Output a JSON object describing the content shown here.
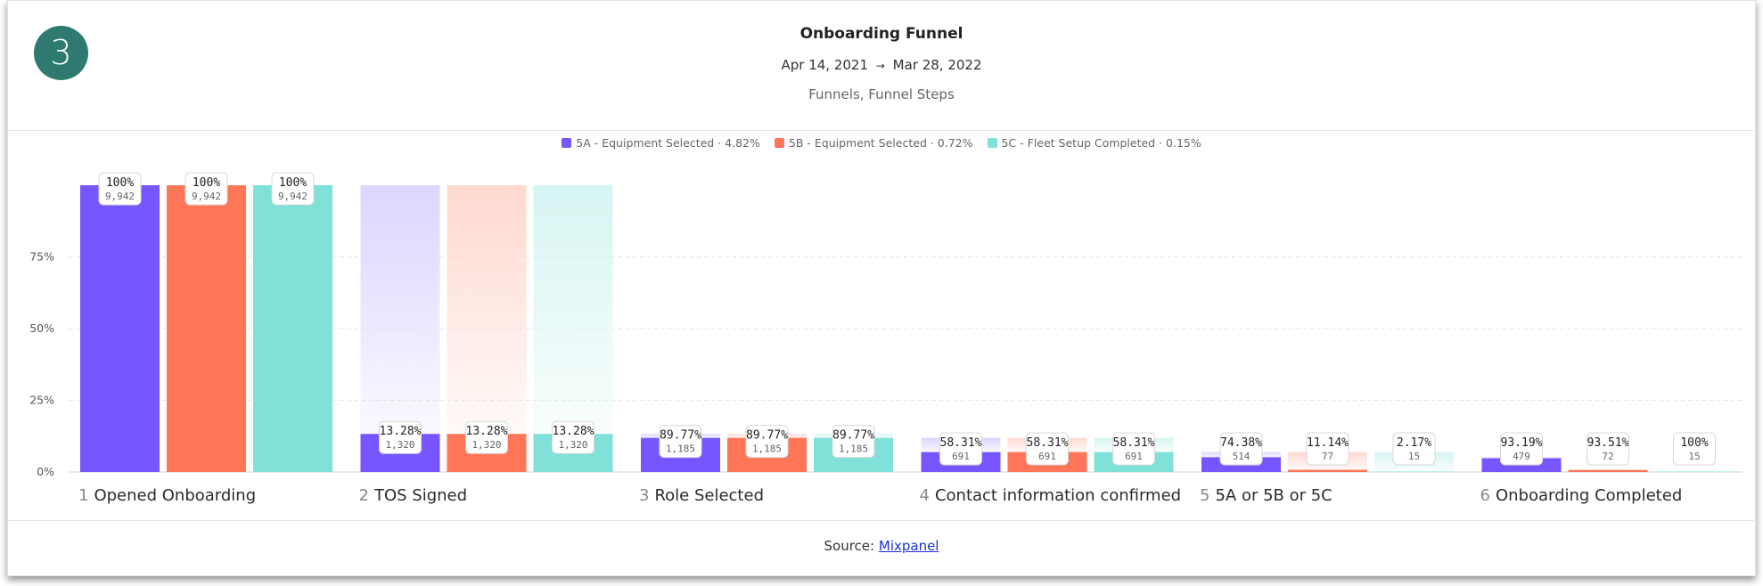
{
  "badge": "3",
  "header": {
    "title": "Onboarding Funnel",
    "date_start": "Apr 14, 2021",
    "date_arrow": "→",
    "date_end": "Mar 28, 2022",
    "subtitle": "Funnels, Funnel Steps"
  },
  "legend": [
    {
      "name": "5A - Equipment Selected",
      "rate": "4.82%",
      "color": "#7856ff"
    },
    {
      "name": "5B - Equipment Selected",
      "rate": "0.72%",
      "color": "#ff7557"
    },
    {
      "name": "5C - Fleet Setup Completed",
      "rate": "0.15%",
      "color": "#80e1d9"
    }
  ],
  "footer": {
    "prefix": "Source:",
    "link": "Mixpanel"
  },
  "chart_data": {
    "type": "bar",
    "title": "Onboarding Funnel",
    "ylim": [
      0,
      100
    ],
    "yticks": [
      {
        "v": 0,
        "label": "0%"
      },
      {
        "v": 25,
        "label": "25%"
      },
      {
        "v": 50,
        "label": "50%"
      },
      {
        "v": 75,
        "label": "75%"
      }
    ],
    "steps": [
      {
        "num": "1",
        "label": "Opened Onboarding"
      },
      {
        "num": "2",
        "label": "TOS Signed"
      },
      {
        "num": "3",
        "label": "Role Selected"
      },
      {
        "num": "4",
        "label": "Contact information confirmed"
      },
      {
        "num": "5",
        "label": "5A or 5B or 5C"
      },
      {
        "num": "6",
        "label": "Onboarding Completed"
      }
    ],
    "series": [
      {
        "name": "5A - Equipment Selected",
        "color": "#7856ff",
        "light": "#ddd5ff",
        "values": [
          100,
          13.28,
          11.92,
          6.95,
          5.17,
          4.82
        ],
        "conversion": [
          "100%",
          "13.28%",
          "89.77%",
          "58.31%",
          "74.38%",
          "93.19%"
        ],
        "counts": [
          "9,942",
          "1,320",
          "1,185",
          "691",
          "514",
          "479"
        ]
      },
      {
        "name": "5B - Equipment Selected",
        "color": "#ff7557",
        "light": "#ffd9d0",
        "values": [
          100,
          13.28,
          11.92,
          6.95,
          0.77,
          0.72
        ],
        "conversion": [
          "100%",
          "13.28%",
          "89.77%",
          "58.31%",
          "11.14%",
          "93.51%"
        ],
        "counts": [
          "9,942",
          "1,320",
          "1,185",
          "691",
          "77",
          "72"
        ]
      },
      {
        "name": "5C - Fleet Setup Completed",
        "color": "#80e1d9",
        "light": "#d6f5f2",
        "values": [
          100,
          13.28,
          11.92,
          6.95,
          0.15,
          0.15
        ],
        "conversion": [
          "100%",
          "13.28%",
          "89.77%",
          "58.31%",
          "2.17%",
          "100%"
        ],
        "counts": [
          "9,942",
          "1,320",
          "1,185",
          "691",
          "15",
          "15"
        ]
      }
    ]
  }
}
